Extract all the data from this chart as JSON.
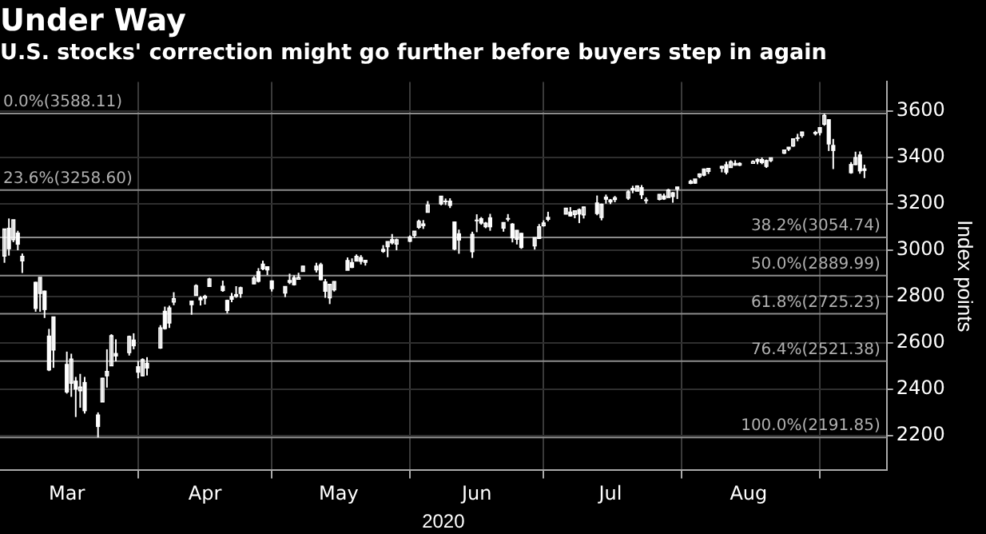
{
  "chart_data": {
    "type": "candlestick",
    "title": "Under Way",
    "subtitle": "U.S. stocks' correction might go further before buyers step in again",
    "xlabel": "2020",
    "ylabel": "Index points",
    "color": "#ffffff",
    "grid": true,
    "legend": false,
    "x": [
      "2020-03-02",
      "2020-03-03",
      "2020-03-04",
      "2020-03-05",
      "2020-03-06",
      "2020-03-09",
      "2020-03-10",
      "2020-03-11",
      "2020-03-12",
      "2020-03-13",
      "2020-03-16",
      "2020-03-17",
      "2020-03-18",
      "2020-03-19",
      "2020-03-20",
      "2020-03-23",
      "2020-03-24",
      "2020-03-25",
      "2020-03-26",
      "2020-03-27",
      "2020-03-30",
      "2020-03-31",
      "2020-04-01",
      "2020-04-02",
      "2020-04-03",
      "2020-04-06",
      "2020-04-07",
      "2020-04-08",
      "2020-04-09",
      "2020-04-13",
      "2020-04-14",
      "2020-04-15",
      "2020-04-16",
      "2020-04-17",
      "2020-04-20",
      "2020-04-21",
      "2020-04-22",
      "2020-04-23",
      "2020-04-24",
      "2020-04-27",
      "2020-04-28",
      "2020-04-29",
      "2020-04-30",
      "2020-05-01",
      "2020-05-04",
      "2020-05-05",
      "2020-05-06",
      "2020-05-07",
      "2020-05-08",
      "2020-05-11",
      "2020-05-12",
      "2020-05-13",
      "2020-05-14",
      "2020-05-15",
      "2020-05-18",
      "2020-05-19",
      "2020-05-20",
      "2020-05-21",
      "2020-05-22",
      "2020-05-26",
      "2020-05-27",
      "2020-05-28",
      "2020-05-29",
      "2020-06-01",
      "2020-06-02",
      "2020-06-03",
      "2020-06-04",
      "2020-06-05",
      "2020-06-08",
      "2020-06-09",
      "2020-06-10",
      "2020-06-11",
      "2020-06-12",
      "2020-06-15",
      "2020-06-16",
      "2020-06-17",
      "2020-06-18",
      "2020-06-19",
      "2020-06-22",
      "2020-06-23",
      "2020-06-24",
      "2020-06-25",
      "2020-06-26",
      "2020-06-29",
      "2020-06-30",
      "2020-07-01",
      "2020-07-02",
      "2020-07-06",
      "2020-07-07",
      "2020-07-08",
      "2020-07-09",
      "2020-07-10",
      "2020-07-13",
      "2020-07-14",
      "2020-07-15",
      "2020-07-16",
      "2020-07-17",
      "2020-07-20",
      "2020-07-21",
      "2020-07-22",
      "2020-07-23",
      "2020-07-24",
      "2020-07-27",
      "2020-07-28",
      "2020-07-29",
      "2020-07-30",
      "2020-07-31",
      "2020-08-03",
      "2020-08-04",
      "2020-08-05",
      "2020-08-06",
      "2020-08-07",
      "2020-08-10",
      "2020-08-11",
      "2020-08-12",
      "2020-08-13",
      "2020-08-14",
      "2020-08-17",
      "2020-08-18",
      "2020-08-19",
      "2020-08-20",
      "2020-08-21",
      "2020-08-24",
      "2020-08-25",
      "2020-08-26",
      "2020-08-27",
      "2020-08-28",
      "2020-08-31",
      "2020-09-01",
      "2020-09-02",
      "2020-09-03",
      "2020-09-04",
      "2020-09-08",
      "2020-09-09",
      "2020-09-10",
      "2020-09-11"
    ],
    "ohlc": [
      [
        2974,
        3090,
        2945,
        3090
      ],
      [
        3096,
        3136,
        2976,
        3003
      ],
      [
        3045,
        3130,
        3034,
        3130
      ],
      [
        3075,
        3083,
        2999,
        3023
      ],
      [
        2954,
        2985,
        2901,
        2972
      ],
      [
        2863,
        2863,
        2734,
        2746
      ],
      [
        2813,
        2882,
        2734,
        2882
      ],
      [
        2825,
        2825,
        2707,
        2741
      ],
      [
        2631,
        2660,
        2478,
        2481
      ],
      [
        2569,
        2711,
        2492,
        2711
      ],
      [
        2509,
        2562,
        2381,
        2386
      ],
      [
        2426,
        2553,
        2367,
        2529
      ],
      [
        2437,
        2453,
        2280,
        2398
      ],
      [
        2394,
        2466,
        2320,
        2409
      ],
      [
        2431,
        2453,
        2295,
        2305
      ],
      [
        2291,
        2300,
        2192,
        2237
      ],
      [
        2345,
        2449,
        2345,
        2447
      ],
      [
        2458,
        2572,
        2407,
        2476
      ],
      [
        2501,
        2637,
        2500,
        2630
      ],
      [
        2556,
        2615,
        2520,
        2541
      ],
      [
        2558,
        2631,
        2545,
        2627
      ],
      [
        2614,
        2641,
        2572,
        2585
      ],
      [
        2499,
        2522,
        2447,
        2471
      ],
      [
        2458,
        2533,
        2455,
        2527
      ],
      [
        2514,
        2538,
        2459,
        2489
      ],
      [
        2578,
        2676,
        2574,
        2664
      ],
      [
        2738,
        2756,
        2657,
        2659
      ],
      [
        2686,
        2760,
        2664,
        2750
      ],
      [
        2776,
        2818,
        2762,
        2790
      ],
      [
        2782,
        2782,
        2721,
        2762
      ],
      [
        2805,
        2852,
        2805,
        2846
      ],
      [
        2796,
        2801,
        2761,
        2783
      ],
      [
        2799,
        2807,
        2765,
        2800
      ],
      [
        2843,
        2880,
        2843,
        2875
      ],
      [
        2846,
        2868,
        2820,
        2823
      ],
      [
        2785,
        2786,
        2727,
        2737
      ],
      [
        2788,
        2815,
        2775,
        2799
      ],
      [
        2810,
        2844,
        2794,
        2798
      ],
      [
        2813,
        2842,
        2794,
        2837
      ],
      [
        2855,
        2887,
        2853,
        2878
      ],
      [
        2909,
        2922,
        2860,
        2863
      ],
      [
        2919,
        2954,
        2913,
        2939
      ],
      [
        2930,
        2930,
        2892,
        2912
      ],
      [
        2869,
        2869,
        2821,
        2831
      ],
      [
        2815,
        2844,
        2797,
        2842
      ],
      [
        2868,
        2898,
        2853,
        2868
      ],
      [
        2883,
        2891,
        2847,
        2848
      ],
      [
        2878,
        2902,
        2877,
        2881
      ],
      [
        2908,
        2932,
        2908,
        2930
      ],
      [
        2915,
        2945,
        2903,
        2930
      ],
      [
        2939,
        2945,
        2869,
        2870
      ],
      [
        2865,
        2875,
        2794,
        2820
      ],
      [
        2794,
        2852,
        2767,
        2852
      ],
      [
        2829,
        2865,
        2821,
        2864
      ],
      [
        2913,
        2968,
        2913,
        2954
      ],
      [
        2948,
        2964,
        2922,
        2923
      ],
      [
        2953,
        2981,
        2953,
        2972
      ],
      [
        2970,
        2978,
        2938,
        2949
      ],
      [
        2948,
        2957,
        2933,
        2955
      ],
      [
        3005,
        3021,
        2988,
        2992
      ],
      [
        3015,
        3037,
        2969,
        3036
      ],
      [
        3047,
        3069,
        3024,
        3029
      ],
      [
        3026,
        3049,
        2999,
        3044
      ],
      [
        3038,
        3063,
        3034,
        3056
      ],
      [
        3064,
        3081,
        3052,
        3081
      ],
      [
        3098,
        3131,
        3091,
        3123
      ],
      [
        3111,
        3129,
        3091,
        3112
      ],
      [
        3163,
        3211,
        3163,
        3194
      ],
      [
        3199,
        3233,
        3193,
        3232
      ],
      [
        3213,
        3222,
        3194,
        3207
      ],
      [
        3213,
        3223,
        3181,
        3190
      ],
      [
        3123,
        3123,
        2999,
        3002
      ],
      [
        3072,
        3088,
        2984,
        3041
      ],
      [
        2993,
        3079,
        2966,
        3067
      ],
      [
        3131,
        3154,
        3077,
        3125
      ],
      [
        3137,
        3142,
        3109,
        3114
      ],
      [
        3101,
        3121,
        3094,
        3115
      ],
      [
        3141,
        3156,
        3083,
        3098
      ],
      [
        3095,
        3120,
        3079,
        3118
      ],
      [
        3138,
        3155,
        3123,
        3131
      ],
      [
        3114,
        3116,
        3033,
        3050
      ],
      [
        3047,
        3086,
        3024,
        3084
      ],
      [
        3074,
        3074,
        3005,
        3009
      ],
      [
        3018,
        3054,
        3002,
        3053
      ],
      [
        3050,
        3112,
        3048,
        3100
      ],
      [
        3105,
        3128,
        3101,
        3116
      ],
      [
        3143,
        3165,
        3124,
        3130
      ],
      [
        3155,
        3182,
        3155,
        3180
      ],
      [
        3166,
        3185,
        3144,
        3145
      ],
      [
        3154,
        3170,
        3137,
        3169
      ],
      [
        3176,
        3179,
        3116,
        3153
      ],
      [
        3152,
        3187,
        3136,
        3185
      ],
      [
        3205,
        3235,
        3150,
        3155
      ],
      [
        3141,
        3200,
        3128,
        3197
      ],
      [
        3225,
        3239,
        3200,
        3227
      ],
      [
        3209,
        3220,
        3198,
        3215
      ],
      [
        3225,
        3233,
        3206,
        3225
      ],
      [
        3224,
        3258,
        3216,
        3251
      ],
      [
        3268,
        3277,
        3245,
        3257
      ],
      [
        3254,
        3279,
        3254,
        3276
      ],
      [
        3271,
        3280,
        3220,
        3236
      ],
      [
        3218,
        3227,
        3200,
        3216
      ],
      [
        3219,
        3241,
        3214,
        3239
      ],
      [
        3235,
        3243,
        3216,
        3218
      ],
      [
        3227,
        3264,
        3227,
        3258
      ],
      [
        3231,
        3250,
        3204,
        3246
      ],
      [
        3270,
        3272,
        3220,
        3271
      ],
      [
        3289,
        3303,
        3284,
        3295
      ],
      [
        3289,
        3306,
        3286,
        3306
      ],
      [
        3317,
        3331,
        3310,
        3327
      ],
      [
        3323,
        3351,
        3318,
        3349
      ],
      [
        3340,
        3352,
        3328,
        3351
      ],
      [
        3356,
        3363,
        3335,
        3360
      ],
      [
        3370,
        3381,
        3326,
        3333
      ],
      [
        3356,
        3387,
        3356,
        3380
      ],
      [
        3372,
        3387,
        3364,
        3373
      ],
      [
        3368,
        3378,
        3362,
        3373
      ],
      [
        3380,
        3387,
        3379,
        3381
      ],
      [
        3388,
        3395,
        3370,
        3390
      ],
      [
        3392,
        3399,
        3370,
        3375
      ],
      [
        3361,
        3390,
        3354,
        3385
      ],
      [
        3386,
        3399,
        3379,
        3397
      ],
      [
        3418,
        3432,
        3414,
        3431
      ],
      [
        3435,
        3444,
        3427,
        3443
      ],
      [
        3449,
        3481,
        3445,
        3479
      ],
      [
        3486,
        3501,
        3469,
        3485
      ],
      [
        3494,
        3510,
        3484,
        3508
      ],
      [
        3509,
        3514,
        3494,
        3500
      ],
      [
        3507,
        3528,
        3494,
        3527
      ],
      [
        3543,
        3588,
        3536,
        3580
      ],
      [
        3564,
        3564,
        3427,
        3455
      ],
      [
        3453,
        3479,
        3349,
        3427
      ],
      [
        3371,
        3379,
        3329,
        3331
      ],
      [
        3369,
        3424,
        3366,
        3398
      ],
      [
        3412,
        3425,
        3329,
        3339
      ],
      [
        3352,
        3368,
        3310,
        3341
      ]
    ],
    "xlim": [
      "2020-03-01",
      "2020-09-16"
    ],
    "xticks": [
      {
        "value": "2020-03-16",
        "label": "Mar"
      },
      {
        "value": "2020-04-01",
        "label": null
      },
      {
        "value": "2020-04-16",
        "label": "Apr"
      },
      {
        "value": "2020-05-01",
        "label": null
      },
      {
        "value": "2020-05-16",
        "label": "May"
      },
      {
        "value": "2020-06-01",
        "label": null
      },
      {
        "value": "2020-06-16",
        "label": "Jun"
      },
      {
        "value": "2020-07-01",
        "label": null
      },
      {
        "value": "2020-07-16",
        "label": "Jul"
      },
      {
        "value": "2020-08-01",
        "label": null
      },
      {
        "value": "2020-08-16",
        "label": "Aug"
      },
      {
        "value": "2020-09-01",
        "label": null
      }
    ],
    "ylim": [
      2050,
      3725
    ],
    "yticks": [
      2200,
      2400,
      2600,
      2800,
      3000,
      3200,
      3400,
      3600
    ],
    "ref_lines": [
      {
        "axis": "y",
        "value": 3588.11,
        "label": "0.0%(3588.11)",
        "color": "#8c8c8c"
      },
      {
        "axis": "y",
        "value": 3258.6,
        "label": "23.6%(3258.60)",
        "color": "#8c8c8c"
      },
      {
        "axis": "y",
        "value": 3054.74,
        "label": "38.2%(3054.74)",
        "color": "#8c8c8c"
      },
      {
        "axis": "y",
        "value": 2889.99,
        "label": "50.0%(2889.99)",
        "color": "#8c8c8c"
      },
      {
        "axis": "y",
        "value": 2725.23,
        "label": "61.8%(2725.23)",
        "color": "#8c8c8c"
      },
      {
        "axis": "y",
        "value": 2521.38,
        "label": "76.4%(2521.38)",
        "color": "#8c8c8c"
      },
      {
        "axis": "y",
        "value": 2191.85,
        "label": "100.0%(2191.85)",
        "color": "#8c8c8c"
      }
    ]
  }
}
